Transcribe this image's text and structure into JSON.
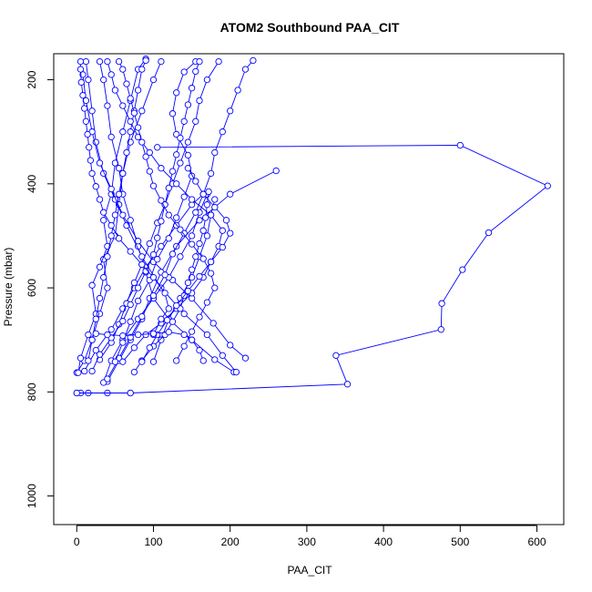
{
  "chart_data": {
    "type": "line",
    "title": "ATOM2 Southbound PAA_CIT",
    "xlabel": "PAA_CIT",
    "ylabel": "Pressure (mbar)",
    "xlim": [
      -30,
      635
    ],
    "ylim": [
      1055,
      150
    ],
    "y_inverted": true,
    "xticks": [
      0,
      100,
      200,
      300,
      400,
      500,
      600
    ],
    "yticks": [
      200,
      400,
      600,
      800,
      1000
    ],
    "grid": false,
    "legend": "none",
    "colors": {
      "series": "#0000ff",
      "axis": "#000000",
      "background": "#ffffff"
    },
    "series": [
      {
        "points": [
          [
            70,
            802
          ],
          [
            40,
            802
          ],
          [
            0,
            802
          ],
          [
            5,
            802
          ],
          [
            15,
            802
          ]
        ]
      },
      {
        "points": [
          [
            0,
            802
          ],
          [
            70,
            802
          ],
          [
            353,
            785
          ],
          [
            338,
            730
          ],
          [
            475,
            680
          ],
          [
            476,
            630
          ],
          [
            503,
            565
          ],
          [
            537,
            494
          ],
          [
            614,
            404
          ],
          [
            500,
            326
          ],
          [
            105,
            330
          ]
        ]
      },
      {
        "points": [
          [
            0,
            763
          ],
          [
            10,
            740
          ],
          [
            20,
            700
          ],
          [
            30,
            650
          ],
          [
            40,
            600
          ],
          [
            35,
            545
          ],
          [
            50,
            500
          ],
          [
            55,
            440
          ],
          [
            60,
            380
          ],
          [
            70,
            320
          ],
          [
            85,
            260
          ],
          [
            100,
            200
          ],
          [
            110,
            165
          ]
        ]
      },
      {
        "points": [
          [
            2,
            763
          ],
          [
            5,
            735
          ],
          [
            15,
            690
          ],
          [
            25,
            650
          ],
          [
            20,
            595
          ],
          [
            30,
            560
          ],
          [
            40,
            520
          ],
          [
            35,
            470
          ],
          [
            45,
            420
          ],
          [
            50,
            360
          ],
          [
            60,
            300
          ],
          [
            70,
            240
          ],
          [
            80,
            180
          ],
          [
            90,
            160
          ]
        ]
      },
      {
        "points": [
          [
            10,
            760
          ],
          [
            25,
            720
          ],
          [
            45,
            680
          ],
          [
            60,
            640
          ],
          [
            75,
            600
          ],
          [
            90,
            560
          ],
          [
            110,
            520
          ],
          [
            130,
            480
          ],
          [
            150,
            440
          ],
          [
            165,
            420
          ]
        ]
      },
      {
        "points": [
          [
            205,
            762
          ],
          [
            180,
            738
          ],
          [
            150,
            700
          ],
          [
            120,
            660
          ],
          [
            100,
            620
          ],
          [
            90,
            570
          ],
          [
            80,
            520
          ],
          [
            70,
            470
          ],
          [
            60,
            420
          ],
          [
            55,
            370
          ],
          [
            45,
            310
          ],
          [
            40,
            250
          ],
          [
            35,
            200
          ],
          [
            30,
            165
          ]
        ]
      },
      {
        "points": [
          [
            208,
            762
          ],
          [
            190,
            730
          ],
          [
            170,
            690
          ],
          [
            140,
            650
          ],
          [
            110,
            600
          ],
          [
            85,
            540
          ],
          [
            65,
            480
          ],
          [
            50,
            430
          ],
          [
            35,
            380
          ],
          [
            25,
            320
          ],
          [
            20,
            260
          ],
          [
            15,
            200
          ],
          [
            12,
            165
          ]
        ]
      },
      {
        "points": [
          [
            220,
            735
          ],
          [
            200,
            710
          ],
          [
            178,
            668
          ],
          [
            150,
            620
          ],
          [
            125,
            585
          ],
          [
            100,
            550
          ],
          [
            80,
            510
          ],
          [
            60,
            460
          ],
          [
            45,
            410
          ],
          [
            30,
            360
          ],
          [
            20,
            300
          ],
          [
            12,
            240
          ],
          [
            8,
            190
          ]
        ]
      },
      {
        "points": [
          [
            260,
            375
          ],
          [
            200,
            420
          ],
          [
            160,
            470
          ],
          [
            130,
            520
          ],
          [
            110,
            570
          ],
          [
            95,
            620
          ],
          [
            85,
            660
          ],
          [
            70,
            700
          ],
          [
            55,
            740
          ],
          [
            40,
            780
          ]
        ]
      },
      {
        "points": [
          [
            35,
            782
          ],
          [
            45,
            740
          ],
          [
            60,
            700
          ],
          [
            80,
            660
          ],
          [
            100,
            620
          ],
          [
            120,
            580
          ],
          [
            135,
            540
          ],
          [
            150,
            500
          ],
          [
            160,
            455
          ],
          [
            170,
            420
          ]
        ]
      },
      {
        "points": [
          [
            40,
            775
          ],
          [
            55,
            735
          ],
          [
            70,
            695
          ],
          [
            85,
            655
          ],
          [
            100,
            615
          ],
          [
            115,
            575
          ],
          [
            125,
            535
          ],
          [
            140,
            495
          ],
          [
            155,
            455
          ],
          [
            165,
            420
          ],
          [
            175,
            380
          ],
          [
            180,
            340
          ],
          [
            190,
            300
          ],
          [
            200,
            260
          ],
          [
            210,
            220
          ],
          [
            220,
            180
          ],
          [
            230,
            163
          ]
        ]
      },
      {
        "points": [
          [
            50,
            742
          ],
          [
            60,
            705
          ],
          [
            70,
            665
          ],
          [
            80,
            625
          ],
          [
            95,
            585
          ],
          [
            105,
            545
          ],
          [
            120,
            505
          ],
          [
            130,
            465
          ],
          [
            140,
            425
          ],
          [
            150,
            385
          ],
          [
            145,
            345
          ],
          [
            130,
            305
          ],
          [
            125,
            265
          ],
          [
            130,
            225
          ],
          [
            140,
            185
          ],
          [
            155,
            165
          ]
        ]
      },
      {
        "points": [
          [
            100,
            742
          ],
          [
            110,
            700
          ],
          [
            120,
            660
          ],
          [
            135,
            620
          ],
          [
            150,
            580
          ],
          [
            160,
            540
          ],
          [
            170,
            500
          ],
          [
            175,
            460
          ],
          [
            180,
            430
          ]
        ]
      },
      {
        "points": [
          [
            30,
            738
          ],
          [
            45,
            705
          ],
          [
            55,
            670
          ],
          [
            65,
            630
          ],
          [
            75,
            590
          ],
          [
            85,
            555
          ],
          [
            95,
            515
          ],
          [
            105,
            475
          ],
          [
            115,
            440
          ],
          [
            125,
            400
          ],
          [
            135,
            360
          ],
          [
            145,
            320
          ],
          [
            155,
            280
          ],
          [
            160,
            240
          ],
          [
            170,
            200
          ],
          [
            185,
            165
          ]
        ]
      },
      {
        "points": [
          [
            15,
            740
          ],
          [
            20,
            700
          ],
          [
            25,
            660
          ],
          [
            30,
            620
          ],
          [
            35,
            580
          ],
          [
            40,
            540
          ],
          [
            45,
            500
          ],
          [
            50,
            460
          ],
          [
            55,
            420
          ],
          [
            60,
            380
          ],
          [
            65,
            340
          ],
          [
            70,
            300
          ],
          [
            75,
            260
          ],
          [
            80,
            220
          ],
          [
            85,
            180
          ],
          [
            90,
            163
          ]
        ]
      },
      {
        "points": [
          [
            60,
            742
          ],
          [
            75,
            715
          ],
          [
            90,
            690
          ],
          [
            110,
            668
          ],
          [
            130,
            640
          ],
          [
            150,
            610
          ],
          [
            165,
            580
          ],
          [
            175,
            550
          ],
          [
            185,
            520
          ],
          [
            190,
            490
          ],
          [
            175,
            460
          ],
          [
            150,
            430
          ],
          [
            130,
            400
          ],
          [
            110,
            370
          ],
          [
            95,
            340
          ],
          [
            80,
            310
          ],
          [
            70,
            280
          ],
          [
            60,
            250
          ],
          [
            50,
            220
          ],
          [
            45,
            190
          ],
          [
            40,
            165
          ]
        ]
      },
      {
        "points": [
          [
            75,
            762
          ],
          [
            85,
            740
          ],
          [
            100,
            712
          ],
          [
            115,
            690
          ],
          [
            125,
            665
          ],
          [
            135,
            640
          ],
          [
            140,
            615
          ],
          [
            145,
            590
          ],
          [
            150,
            565
          ],
          [
            155,
            540
          ],
          [
            160,
            515
          ],
          [
            165,
            490
          ],
          [
            168,
            465
          ],
          [
            170,
            440
          ],
          [
            172,
            415
          ]
        ]
      },
      {
        "points": [
          [
            20,
            760
          ],
          [
            30,
            728
          ],
          [
            45,
            696
          ],
          [
            60,
            664
          ],
          [
            70,
            632
          ],
          [
            80,
            600
          ],
          [
            90,
            568
          ],
          [
            100,
            536
          ],
          [
            105,
            504
          ],
          [
            110,
            472
          ],
          [
            115,
            440
          ],
          [
            120,
            408
          ],
          [
            125,
            376
          ],
          [
            130,
            344
          ],
          [
            135,
            312
          ],
          [
            140,
            280
          ],
          [
            145,
            248
          ],
          [
            150,
            216
          ],
          [
            155,
            184
          ],
          [
            160,
            165
          ]
        ]
      },
      {
        "points": [
          [
            85,
            742
          ],
          [
            95,
            715
          ],
          [
            105,
            690
          ],
          [
            118,
            662
          ],
          [
            130,
            634
          ],
          [
            145,
            606
          ],
          [
            160,
            578
          ],
          [
            175,
            550
          ],
          [
            190,
            522
          ],
          [
            200,
            495
          ],
          [
            195,
            470
          ],
          [
            180,
            445
          ],
          [
            165,
            420
          ],
          [
            155,
            395
          ],
          [
            145,
            370
          ]
        ]
      },
      {
        "points": [
          [
            130,
            740
          ],
          [
            140,
            712
          ],
          [
            150,
            684
          ],
          [
            160,
            656
          ],
          [
            170,
            628
          ],
          [
            180,
            600
          ],
          [
            175,
            572
          ],
          [
            165,
            544
          ],
          [
            150,
            516
          ],
          [
            135,
            488
          ],
          [
            120,
            460
          ],
          [
            110,
            432
          ],
          [
            100,
            404
          ],
          [
            95,
            376
          ],
          [
            90,
            348
          ],
          [
            85,
            320
          ],
          [
            80,
            292
          ],
          [
            75,
            264
          ],
          [
            70,
            236
          ],
          [
            65,
            208
          ],
          [
            60,
            180
          ],
          [
            55,
            165
          ]
        ]
      },
      {
        "points": [
          [
            100,
            690
          ],
          [
            110,
            660
          ],
          [
            120,
            640
          ],
          [
            115,
            610
          ],
          [
            100,
            580
          ],
          [
            85,
            555
          ],
          [
            70,
            530
          ],
          [
            55,
            505
          ],
          [
            45,
            480
          ],
          [
            35,
            455
          ],
          [
            30,
            430
          ],
          [
            25,
            405
          ],
          [
            20,
            380
          ],
          [
            18,
            355
          ],
          [
            16,
            330
          ],
          [
            14,
            305
          ],
          [
            12,
            280
          ],
          [
            10,
            255
          ],
          [
            8,
            230
          ],
          [
            6,
            205
          ],
          [
            5,
            180
          ],
          [
            5,
            165
          ]
        ]
      },
      {
        "points": [
          [
            165,
            740
          ],
          [
            160,
            720
          ],
          [
            150,
            700
          ],
          [
            140,
            690
          ],
          [
            120,
            685
          ],
          [
            100,
            688
          ],
          [
            80,
            690
          ],
          [
            60,
            692
          ],
          [
            40,
            690
          ],
          [
            25,
            688
          ]
        ]
      }
    ]
  }
}
